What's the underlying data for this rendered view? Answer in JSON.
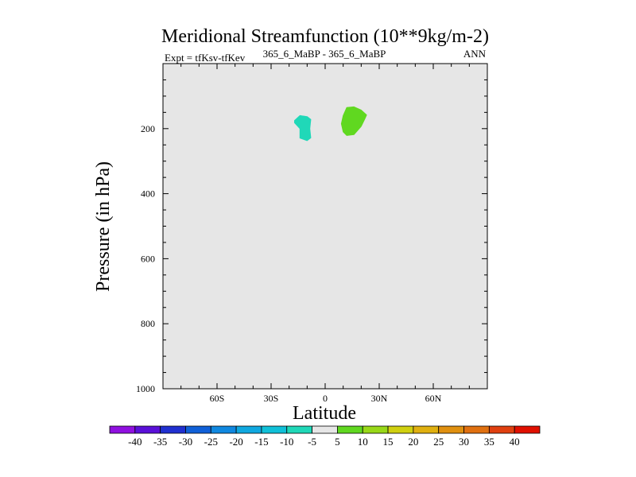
{
  "chart_data": {
    "type": "contour",
    "title": "Meridional Streamfunction (10**9kg/m-2)",
    "subtitle_left": "Expt = tfKsv-tfKev",
    "subtitle_center": "365_6_MaBP - 365_6_MaBP",
    "subtitle_right": "ANN",
    "xlabel": "Latitude",
    "ylabel": "Pressure (in hPa)",
    "xlim": [
      -90,
      90
    ],
    "ylim": [
      1000,
      0
    ],
    "xticks": [
      {
        "value": -60,
        "label": "60S"
      },
      {
        "value": -30,
        "label": "30S"
      },
      {
        "value": 0,
        "label": "0"
      },
      {
        "value": 30,
        "label": "30N"
      },
      {
        "value": 60,
        "label": "60N"
      }
    ],
    "yticks": [
      {
        "value": 200,
        "label": "200"
      },
      {
        "value": 400,
        "label": "400"
      },
      {
        "value": 600,
        "label": "600"
      },
      {
        "value": 800,
        "label": "800"
      },
      {
        "value": 1000,
        "label": "1000"
      }
    ],
    "plot_background": "#e6e6e6",
    "features": [
      {
        "name": "negative-cell",
        "level": "-10 to -5",
        "color": "#20d8b8",
        "points": [
          [
            -17,
            175
          ],
          [
            -14,
            160
          ],
          [
            -10,
            163
          ],
          [
            -8,
            172
          ],
          [
            -8.5,
            200
          ],
          [
            -8,
            228
          ],
          [
            -10,
            237
          ],
          [
            -14,
            229
          ],
          [
            -14,
            200
          ],
          [
            -17,
            182
          ]
        ]
      },
      {
        "name": "positive-cell",
        "level": "5 to 10",
        "color": "#60d820",
        "points": [
          [
            10,
            160
          ],
          [
            12,
            135
          ],
          [
            16,
            133
          ],
          [
            20,
            143
          ],
          [
            23,
            158
          ],
          [
            22,
            170
          ],
          [
            20,
            193
          ],
          [
            16,
            218
          ],
          [
            12,
            221
          ],
          [
            10,
            210
          ],
          [
            9,
            185
          ]
        ]
      }
    ],
    "colorbar": {
      "labels": [
        "-40",
        "-35",
        "-30",
        "-25",
        "-20",
        "-15",
        "-10",
        "-5",
        "5",
        "10",
        "15",
        "20",
        "25",
        "30",
        "35",
        "40"
      ],
      "colors": [
        "#9010e0",
        "#5a10d8",
        "#2030d0",
        "#1060d8",
        "#1088e0",
        "#10a8e0",
        "#10c0d8",
        "#20d8b8",
        "#e6e6e6",
        "#60d820",
        "#98d818",
        "#d0d010",
        "#e0b010",
        "#e09010",
        "#e07010",
        "#e04010",
        "#e01000"
      ]
    }
  }
}
